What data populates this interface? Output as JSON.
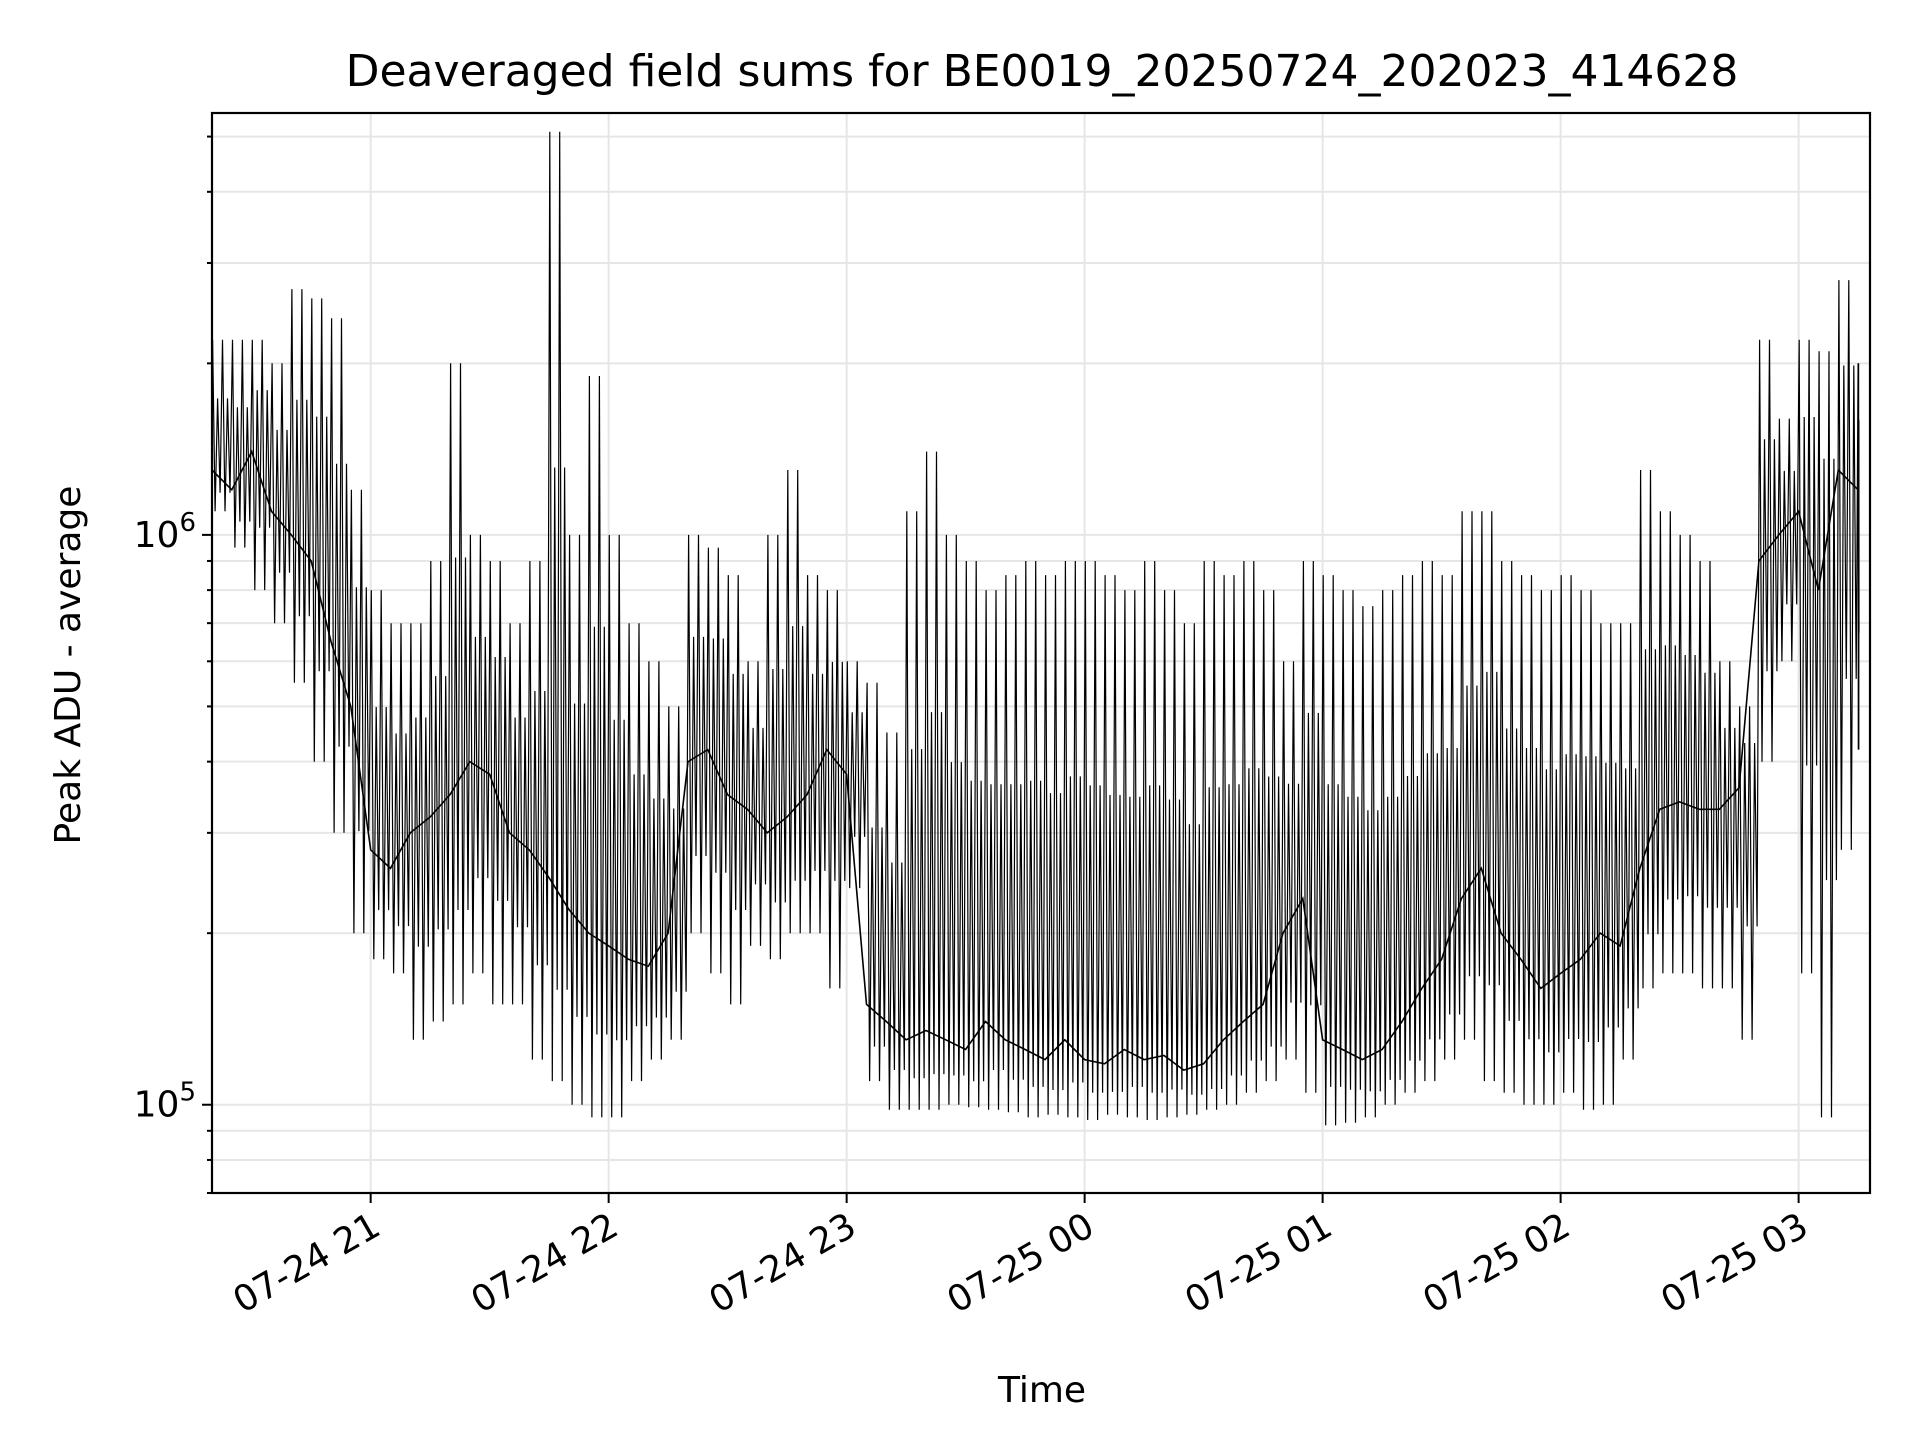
{
  "chart_data": {
    "type": "line",
    "title": "Deaveraged field sums for BE0019_20250724_202023_414628",
    "xlabel": "Time",
    "ylabel": "Peak ADU - average",
    "yscale": "log",
    "ylim": [
      70000,
      5500000
    ],
    "xlim": [
      "2025-07-24 20:20",
      "2025-07-25 03:18"
    ],
    "grid": true,
    "line_color": "#000000",
    "grid_color": "#e6e6e6",
    "x_ticks": [
      {
        "t": "2025-07-24 21:00",
        "label": "07-24 21"
      },
      {
        "t": "2025-07-24 22:00",
        "label": "07-24 22"
      },
      {
        "t": "2025-07-24 23:00",
        "label": "07-24 23"
      },
      {
        "t": "2025-07-25 00:00",
        "label": "07-25 00"
      },
      {
        "t": "2025-07-25 01:00",
        "label": "07-25 01"
      },
      {
        "t": "2025-07-25 02:00",
        "label": "07-25 02"
      },
      {
        "t": "2025-07-25 03:00",
        "label": "07-25 03"
      }
    ],
    "y_ticks": [
      {
        "value": 100000,
        "base": "10",
        "exp": "5"
      },
      {
        "value": 1000000,
        "base": "10",
        "exp": "6"
      }
    ],
    "series": [
      {
        "x": [
          "2025-07-24 20:20",
          "2025-07-24 20:25",
          "2025-07-24 20:30",
          "2025-07-24 20:35",
          "2025-07-24 20:40",
          "2025-07-24 20:45",
          "2025-07-24 20:50",
          "2025-07-24 20:55",
          "2025-07-24 21:00",
          "2025-07-24 21:05",
          "2025-07-24 21:10",
          "2025-07-24 21:15",
          "2025-07-24 21:20",
          "2025-07-24 21:25",
          "2025-07-24 21:30",
          "2025-07-24 21:35",
          "2025-07-24 21:40",
          "2025-07-24 21:45",
          "2025-07-24 21:50",
          "2025-07-24 21:55",
          "2025-07-24 22:00",
          "2025-07-24 22:05",
          "2025-07-24 22:10",
          "2025-07-24 22:15",
          "2025-07-24 22:20",
          "2025-07-24 22:25",
          "2025-07-24 22:30",
          "2025-07-24 22:35",
          "2025-07-24 22:40",
          "2025-07-24 22:45",
          "2025-07-24 22:50",
          "2025-07-24 22:55",
          "2025-07-24 23:00",
          "2025-07-24 23:05",
          "2025-07-24 23:10",
          "2025-07-24 23:15",
          "2025-07-24 23:20",
          "2025-07-24 23:25",
          "2025-07-24 23:30",
          "2025-07-24 23:35",
          "2025-07-24 23:40",
          "2025-07-24 23:45",
          "2025-07-24 23:50",
          "2025-07-24 23:55",
          "2025-07-25 00:00",
          "2025-07-25 00:05",
          "2025-07-25 00:10",
          "2025-07-25 00:15",
          "2025-07-25 00:20",
          "2025-07-25 00:25",
          "2025-07-25 00:30",
          "2025-07-25 00:35",
          "2025-07-25 00:40",
          "2025-07-25 00:45",
          "2025-07-25 00:50",
          "2025-07-25 00:55",
          "2025-07-25 01:00",
          "2025-07-25 01:05",
          "2025-07-25 01:10",
          "2025-07-25 01:15",
          "2025-07-25 01:20",
          "2025-07-25 01:25",
          "2025-07-25 01:30",
          "2025-07-25 01:35",
          "2025-07-25 01:40",
          "2025-07-25 01:45",
          "2025-07-25 01:50",
          "2025-07-25 01:55",
          "2025-07-25 02:00",
          "2025-07-25 02:05",
          "2025-07-25 02:10",
          "2025-07-25 02:15",
          "2025-07-25 02:20",
          "2025-07-25 02:25",
          "2025-07-25 02:30",
          "2025-07-25 02:35",
          "2025-07-25 02:40",
          "2025-07-25 02:45",
          "2025-07-25 02:50",
          "2025-07-25 02:55",
          "2025-07-25 03:00",
          "2025-07-25 03:05",
          "2025-07-25 03:10",
          "2025-07-25 03:15"
        ],
        "y": [
          1300000,
          1200000,
          1400000,
          1100000,
          1000000,
          900000,
          650000,
          500000,
          280000,
          260000,
          300000,
          320000,
          350000,
          400000,
          380000,
          300000,
          280000,
          250000,
          220000,
          200000,
          190000,
          180000,
          175000,
          200000,
          400000,
          420000,
          350000,
          330000,
          300000,
          320000,
          350000,
          420000,
          380000,
          150000,
          140000,
          130000,
          135000,
          130000,
          125000,
          140000,
          130000,
          125000,
          120000,
          130000,
          120000,
          118000,
          125000,
          120000,
          122000,
          115000,
          118000,
          130000,
          140000,
          150000,
          200000,
          230000,
          130000,
          125000,
          120000,
          125000,
          140000,
          160000,
          180000,
          230000,
          260000,
          200000,
          180000,
          160000,
          170000,
          180000,
          200000,
          190000,
          260000,
          330000,
          340000,
          330000,
          330000,
          360000,
          900000,
          1000000,
          1100000,
          800000,
          1300000,
          1200000
        ],
        "y_max": [
          2200000,
          2200000,
          2200000,
          2000000,
          2700000,
          2600000,
          2400000,
          1200000,
          800000,
          700000,
          700000,
          900000,
          2000000,
          1000000,
          900000,
          700000,
          900000,
          5100000,
          1000000,
          1900000,
          1000000,
          700000,
          600000,
          500000,
          1000000,
          950000,
          850000,
          600000,
          1000000,
          1300000,
          850000,
          800000,
          600000,
          550000,
          450000,
          1100000,
          1400000,
          1000000,
          900000,
          800000,
          850000,
          900000,
          850000,
          900000,
          900000,
          850000,
          800000,
          900000,
          800000,
          700000,
          900000,
          850000,
          900000,
          800000,
          600000,
          900000,
          850000,
          800000,
          750000,
          800000,
          850000,
          900000,
          850000,
          1100000,
          1100000,
          900000,
          850000,
          800000,
          850000,
          800000,
          700000,
          700000,
          1300000,
          1100000,
          1000000,
          900000,
          600000,
          500000,
          2200000,
          1600000,
          2200000,
          2100000,
          2800000,
          2000000
        ],
        "y_min": [
          1100000,
          950000,
          800000,
          700000,
          550000,
          400000,
          300000,
          200000,
          180000,
          170000,
          130000,
          140000,
          150000,
          170000,
          150000,
          150000,
          120000,
          110000,
          100000,
          95000,
          95000,
          110000,
          120000,
          130000,
          200000,
          170000,
          150000,
          190000,
          180000,
          200000,
          200000,
          160000,
          240000,
          110000,
          98000,
          98000,
          98000,
          100000,
          99000,
          98000,
          97000,
          95000,
          96000,
          95000,
          94000,
          96000,
          95000,
          94000,
          95000,
          96000,
          98000,
          100000,
          105000,
          110000,
          120000,
          105000,
          92000,
          93000,
          95000,
          100000,
          105000,
          110000,
          120000,
          130000,
          110000,
          105000,
          100000,
          100000,
          105000,
          98000,
          100000,
          120000,
          160000,
          170000,
          170000,
          160000,
          160000,
          130000,
          400000,
          600000,
          170000,
          95000,
          280000,
          420000
        ]
      }
    ]
  }
}
